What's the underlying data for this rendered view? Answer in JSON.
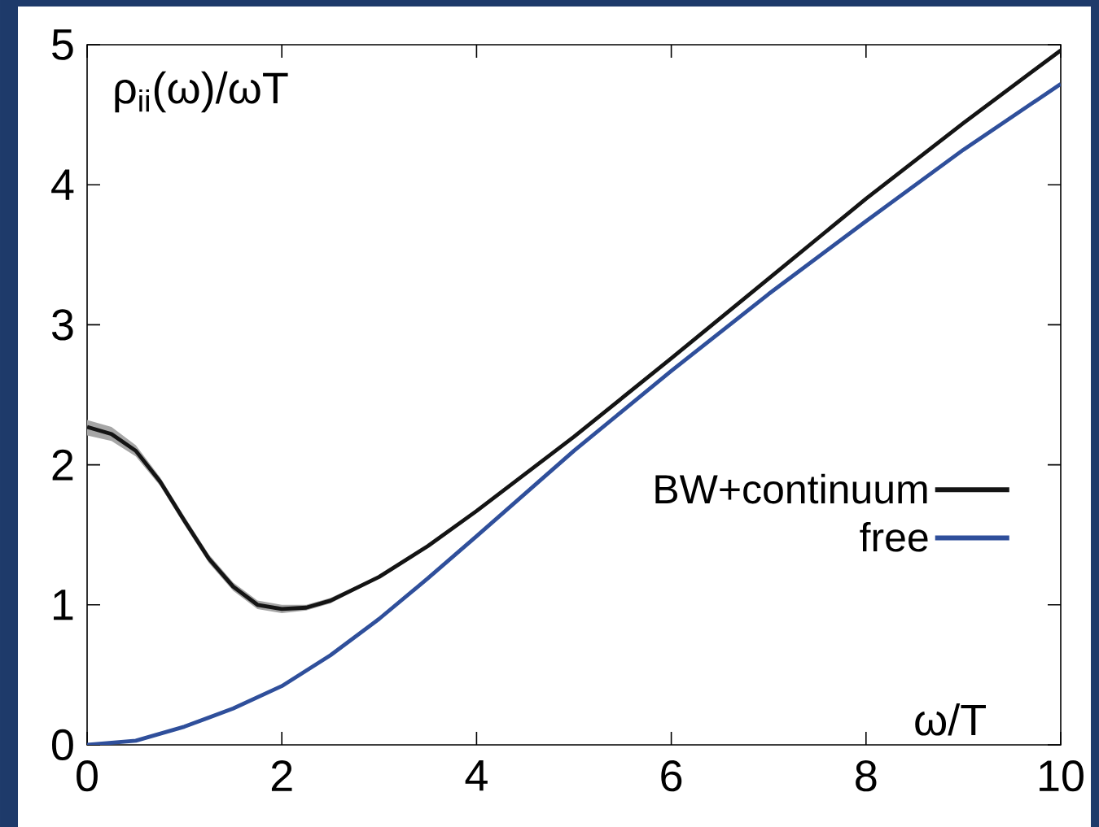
{
  "chart_data": {
    "type": "line",
    "xlabel": "ω/T",
    "ylabel": "ρ$_{ii}$(ω)/ωT",
    "xlim": [
      0,
      10
    ],
    "ylim": [
      0,
      5
    ],
    "xticks": [
      0,
      2,
      4,
      6,
      8,
      10
    ],
    "yticks": [
      0,
      1,
      2,
      3,
      4,
      5
    ],
    "legend": "right",
    "series": [
      {
        "name": "BW+continuum",
        "color": "#141414",
        "x": [
          0,
          0.25,
          0.5,
          0.75,
          1.0,
          1.25,
          1.5,
          1.75,
          2.0,
          2.25,
          2.5,
          3,
          3.5,
          4,
          5,
          6,
          7,
          8,
          9,
          10
        ],
        "values": [
          2.27,
          2.22,
          2.1,
          1.88,
          1.6,
          1.33,
          1.13,
          1.0,
          0.97,
          0.98,
          1.03,
          1.2,
          1.42,
          1.67,
          2.2,
          2.76,
          3.33,
          3.9,
          4.44,
          4.96
        ],
        "lower": [
          2.21,
          2.17,
          2.06,
          1.85,
          1.57,
          1.3,
          1.1,
          0.97,
          0.94,
          0.96,
          1.01,
          1.19,
          1.41,
          1.67,
          2.2,
          2.76,
          3.33,
          3.9,
          4.44,
          4.96
        ],
        "upper": [
          2.32,
          2.27,
          2.14,
          1.91,
          1.63,
          1.36,
          1.16,
          1.03,
          1.0,
          1.0,
          1.05,
          1.21,
          1.43,
          1.67,
          2.2,
          2.76,
          3.33,
          3.9,
          4.44,
          4.96
        ]
      },
      {
        "name": "free",
        "color": "#2f4f9b",
        "x": [
          0,
          0.5,
          1,
          1.5,
          2,
          2.5,
          3,
          3.5,
          4,
          5,
          6,
          7,
          8,
          9,
          10
        ],
        "values": [
          0,
          0.03,
          0.13,
          0.26,
          0.42,
          0.64,
          0.9,
          1.19,
          1.49,
          2.1,
          2.67,
          3.22,
          3.74,
          4.25,
          4.72
        ]
      }
    ]
  }
}
